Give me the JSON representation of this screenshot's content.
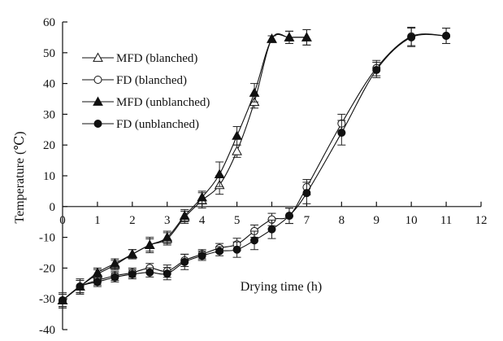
{
  "chart_data": {
    "type": "line",
    "title": "",
    "xlabel": "Drying time (h)",
    "ylabel": "Temperature (℃)",
    "xlim": [
      0,
      12
    ],
    "ylim": [
      -40,
      60
    ],
    "xticks": [
      0,
      1,
      2,
      3,
      4,
      5,
      6,
      7,
      8,
      9,
      10,
      11,
      12
    ],
    "yticks": [
      60,
      50,
      40,
      30,
      20,
      10,
      0,
      -10,
      -20,
      -30,
      -40
    ],
    "grid": false,
    "legend_position": "top-left",
    "series": [
      {
        "name": "MFD (blanched)",
        "marker": "open-triangle",
        "x": [
          0,
          0.5,
          1,
          1.5,
          2,
          2.5,
          3,
          3.5,
          4,
          4.5,
          5,
          5.5,
          6,
          6.5,
          7
        ],
        "values": [
          -30.5,
          -26,
          -22,
          -19,
          -15.5,
          -12.5,
          -10.5,
          -3.5,
          2,
          7,
          18,
          34,
          54.5,
          55,
          55
        ],
        "error": [
          2,
          2,
          1.5,
          1.5,
          1.5,
          2,
          2,
          2,
          2.5,
          3,
          2,
          2,
          1,
          2,
          2.5
        ]
      },
      {
        "name": "FD (blanched)",
        "marker": "open-circle",
        "x": [
          0,
          0.5,
          1,
          1.5,
          2,
          2.5,
          3,
          3.5,
          4,
          4.5,
          5,
          5.5,
          6,
          6.5,
          7,
          8,
          9,
          10,
          11
        ],
        "values": [
          -30.5,
          -26,
          -24,
          -22.5,
          -21.5,
          -20,
          -21,
          -17.5,
          -15.5,
          -13.5,
          -12.3,
          -8,
          -4.2,
          -3,
          6.3,
          27,
          45,
          55.3,
          55.5
        ],
        "error": [
          2,
          2,
          1.5,
          1.5,
          1.5,
          1.5,
          2,
          2,
          1.5,
          1.5,
          2,
          2,
          2,
          2.5,
          2.5,
          3,
          2.5,
          3,
          2.5
        ]
      },
      {
        "name": "MFD (unblanched)",
        "marker": "filled-triangle",
        "x": [
          0,
          0.5,
          1,
          1.5,
          2,
          2.5,
          3,
          3.5,
          4,
          4.5,
          5,
          5.5,
          6,
          6.5,
          7
        ],
        "values": [
          -30.5,
          -26,
          -21.5,
          -18.5,
          -15.5,
          -12.5,
          -10,
          -3,
          3,
          10.5,
          23,
          37,
          54.5,
          55,
          55
        ],
        "error": [
          2,
          2,
          1.5,
          1.5,
          1.5,
          2.5,
          2,
          2,
          2,
          4,
          3,
          3,
          1,
          2,
          2.5
        ]
      },
      {
        "name": "FD (unblanched)",
        "marker": "filled-circle",
        "x": [
          0,
          0.5,
          1,
          1.5,
          2,
          2.5,
          3,
          3.5,
          4,
          4.5,
          5,
          5.5,
          6,
          6.5,
          7,
          8,
          9,
          10,
          11
        ],
        "values": [
          -30.5,
          -26,
          -24.5,
          -23,
          -22,
          -21.4,
          -21.8,
          -18,
          -16,
          -14.5,
          -14,
          -11,
          -7.4,
          -3,
          4.4,
          24,
          44.4,
          55,
          55.5
        ],
        "error": [
          2.5,
          2.5,
          1.5,
          1.5,
          1.5,
          1.5,
          2,
          2.5,
          1.5,
          1.5,
          2.5,
          3,
          3,
          2.5,
          3.5,
          4,
          2.5,
          3,
          2.5
        ]
      }
    ]
  }
}
